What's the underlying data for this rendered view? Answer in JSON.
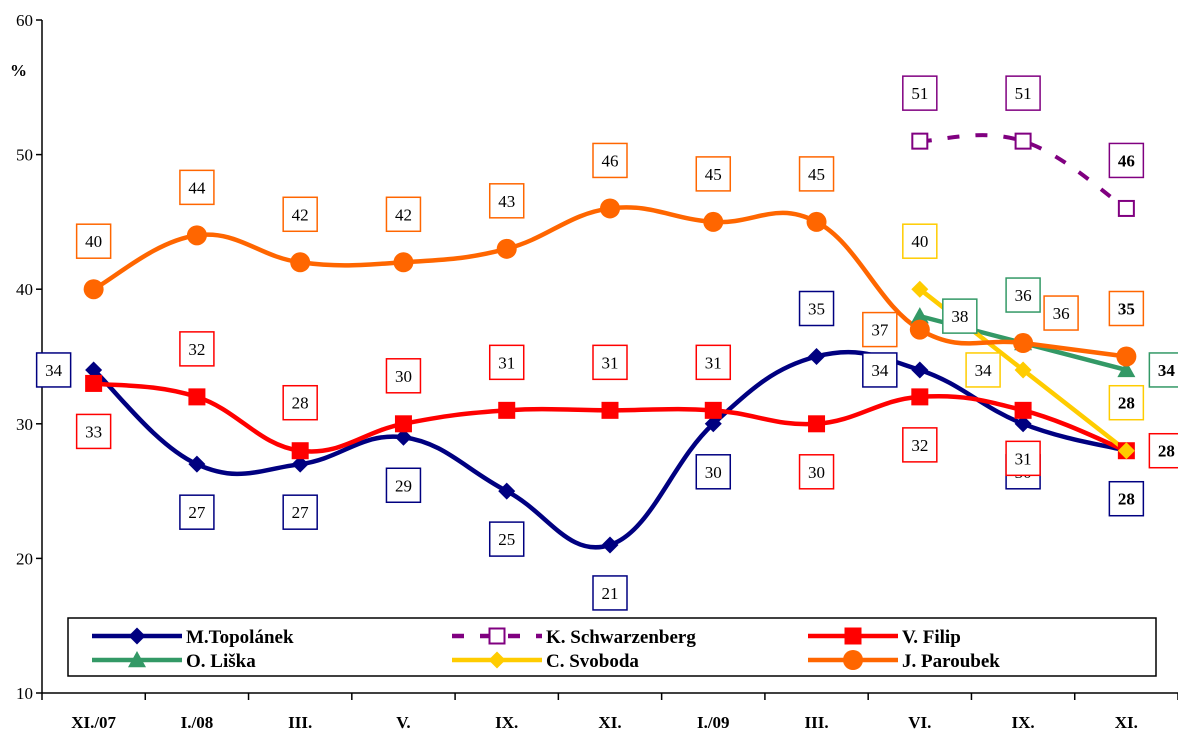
{
  "chart_data": {
    "type": "line",
    "ylabel": "%",
    "ylim": [
      10,
      60
    ],
    "yticks": [
      10,
      20,
      30,
      40,
      50,
      60
    ],
    "categories": [
      "XI./07",
      "I./08",
      "III.",
      "V.",
      "IX.",
      "XI.",
      "I./09",
      "III.",
      "VI.",
      "IX.",
      "XI."
    ],
    "grid": false,
    "legend": "bottom",
    "series": [
      {
        "name": "M.Topolánek",
        "color": "#000080",
        "marker": "diamond",
        "dashed": false,
        "values": [
          34,
          27,
          27,
          29,
          25,
          21,
          30,
          35,
          34,
          30,
          28
        ],
        "labels": [
          "34",
          "27",
          "27",
          "29",
          "25",
          "21",
          "30",
          "35",
          "34",
          "30",
          "28"
        ],
        "label_pos": [
          "left",
          "below",
          "below",
          "below",
          "below",
          "below",
          "below",
          "above",
          "left",
          "below",
          "below"
        ],
        "label_bold": [
          false,
          false,
          false,
          false,
          false,
          false,
          false,
          false,
          false,
          false,
          true
        ]
      },
      {
        "name": "K. Schwarzenberg",
        "color": "#800080",
        "marker": "square-open",
        "dashed": true,
        "values": [
          null,
          null,
          null,
          null,
          null,
          null,
          null,
          null,
          51,
          51,
          46
        ],
        "labels": [
          null,
          null,
          null,
          null,
          null,
          null,
          null,
          null,
          "51",
          "51",
          "46"
        ],
        "label_pos": [
          null,
          null,
          null,
          null,
          null,
          null,
          null,
          null,
          "above",
          "above",
          "above"
        ],
        "label_bold": [
          false,
          false,
          false,
          false,
          false,
          false,
          false,
          false,
          false,
          false,
          true
        ]
      },
      {
        "name": "V. Filip",
        "color": "#ff0000",
        "marker": "square",
        "dashed": false,
        "values": [
          33,
          32,
          28,
          30,
          31,
          31,
          31,
          30,
          32,
          31,
          28
        ],
        "labels": [
          "33",
          "32",
          "28",
          "30",
          "31",
          "31",
          "31",
          "30",
          "32",
          "31",
          "28"
        ],
        "label_pos": [
          "below",
          "above",
          "above",
          "above",
          "above",
          "above",
          "above",
          "below",
          "below",
          "below",
          "right"
        ],
        "label_bold": [
          false,
          false,
          false,
          false,
          false,
          false,
          false,
          false,
          false,
          false,
          true
        ]
      },
      {
        "name": "O. Liška",
        "color": "#339966",
        "marker": "triangle",
        "dashed": false,
        "values": [
          null,
          null,
          null,
          null,
          null,
          null,
          null,
          null,
          38,
          36,
          34
        ],
        "labels": [
          null,
          null,
          null,
          null,
          null,
          null,
          null,
          null,
          "38",
          "36",
          "34"
        ],
        "label_pos": [
          null,
          null,
          null,
          null,
          null,
          null,
          null,
          null,
          "right",
          "above",
          "right"
        ],
        "label_bold": [
          false,
          false,
          false,
          false,
          false,
          false,
          false,
          false,
          false,
          false,
          true
        ]
      },
      {
        "name": "C. Svoboda",
        "color": "#ffcc00",
        "marker": "diamond",
        "dashed": false,
        "values": [
          null,
          null,
          null,
          null,
          null,
          null,
          null,
          null,
          40,
          34,
          28
        ],
        "labels": [
          null,
          null,
          null,
          null,
          null,
          null,
          null,
          null,
          "40",
          "34",
          "28"
        ],
        "label_pos": [
          null,
          null,
          null,
          null,
          null,
          null,
          null,
          null,
          "above",
          "left",
          "above"
        ],
        "label_bold": [
          false,
          false,
          false,
          false,
          false,
          false,
          false,
          false,
          false,
          false,
          true
        ]
      },
      {
        "name": "J. Paroubek",
        "color": "#ff6600",
        "marker": "circle",
        "dashed": false,
        "values": [
          40,
          44,
          42,
          42,
          43,
          46,
          45,
          45,
          37,
          36,
          35
        ],
        "labels": [
          "40",
          "44",
          "42",
          "42",
          "43",
          "46",
          "45",
          "45",
          "37",
          "36",
          "35"
        ],
        "label_pos": [
          "above",
          "above",
          "above",
          "above",
          "above",
          "above",
          "above",
          "above",
          "left",
          "aboveright",
          "above"
        ],
        "label_bold": [
          false,
          false,
          false,
          false,
          false,
          false,
          false,
          false,
          false,
          false,
          true
        ]
      }
    ]
  }
}
